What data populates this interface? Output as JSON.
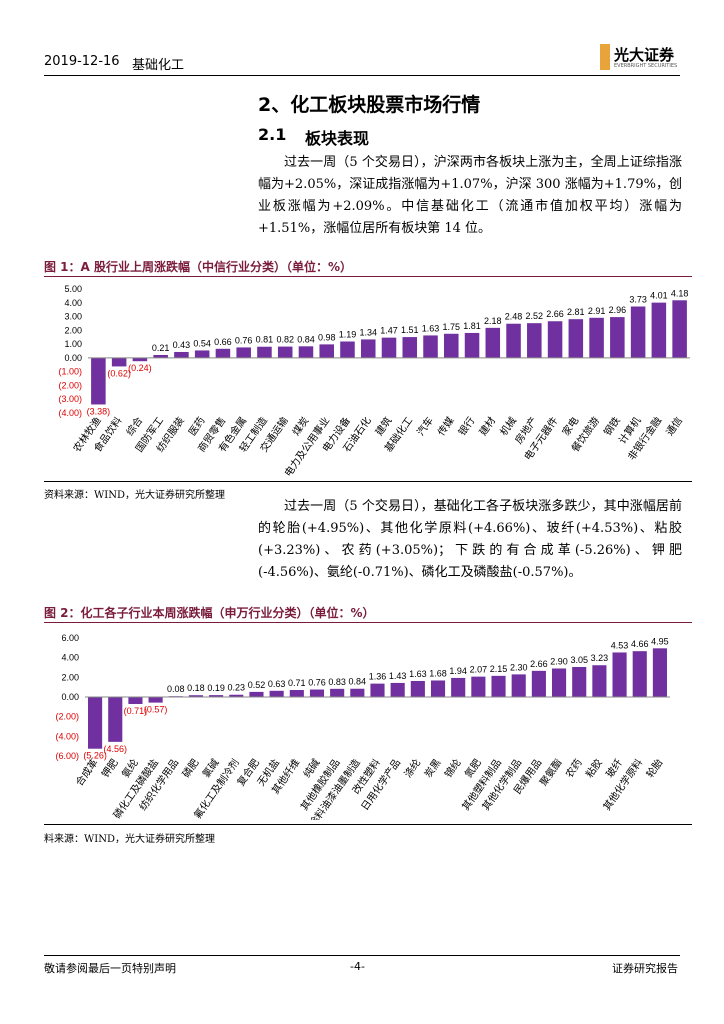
{
  "header": {
    "date": "2019-12-16",
    "section": "基础化工",
    "logo": "光大证券",
    "logo_en": "EVERBRIGHT SECURITIES"
  },
  "heading1": "2、化工板块股票市场行情",
  "heading2": {
    "number": "2.1",
    "title": "板块表现"
  },
  "paragraphs": [
    "过去一周（5 个交易日），沪深两市各板块上涨为主，全周上证综指涨幅为+2.05%，深证成指涨幅为+1.07%，沪深 300 涨幅为+1.79%，创业板涨幅为+2.09%。中信基础化工（流通市值加权平均）涨幅为+1.51%，涨幅位居所有板块第 14 位。",
    "过去一周（5 个交易日），基础化工各子板块涨多跌少，其中涨幅居前的轮胎(+4.95%)、其他化学原料(+4.66%)、玻纤(+4.53%)、粘胶(+3.23%)、农药(+3.05%)；下跌的有合成革(-5.26%)、钾肥(-4.56%)、氨纶(-0.71%)、磷化工及磷酸盐(-0.57%)。"
  ],
  "chart_data": [
    {
      "type": "bar",
      "title": "图 1：A 股行业上周涨跌幅（中信行业分类）（单位：%）",
      "source": "资料来源：WIND，光大证券研究所整理",
      "categories": [
        "农林牧渔",
        "食品饮料",
        "综合",
        "国防军工",
        "纺织服装",
        "医药",
        "商贸零售",
        "有色金属",
        "轻工制造",
        "交通运输",
        "煤炭",
        "电力及公用事业",
        "电力设备",
        "石油石化",
        "建筑",
        "基础化工",
        "汽车",
        "传媒",
        "银行",
        "建材",
        "机械",
        "房地产",
        "电子元器件",
        "家电",
        "餐饮旅游",
        "钢铁",
        "计算机",
        "非银行金融",
        "通信"
      ],
      "values": [
        -3.38,
        -0.62,
        -0.24,
        0.21,
        0.43,
        0.54,
        0.66,
        0.76,
        0.81,
        0.82,
        0.84,
        0.98,
        1.19,
        1.34,
        1.47,
        1.51,
        1.63,
        1.75,
        1.81,
        2.18,
        2.48,
        2.52,
        2.66,
        2.81,
        2.91,
        2.96,
        3.73,
        4.01,
        4.18
      ],
      "value_labels": [
        "(3.38)",
        "(0.62)",
        "(0.24)",
        "0.21",
        "0.43",
        "0.54",
        "0.66",
        "0.76",
        "0.81",
        "0.82",
        "0.84",
        "0.98",
        "1.19",
        "1.34",
        "1.47",
        "1.51",
        "1.63",
        "1.75",
        "1.81",
        "2.18",
        "2.48",
        "2.52",
        "2.66",
        "2.81",
        "2.91",
        "2.96",
        "3.73",
        "4.01",
        "4.18"
      ],
      "color": "#7030a0",
      "negative_label_color": "#e00000",
      "ylim": [
        -4,
        5
      ],
      "yticks": [
        {
          "value": -4,
          "label": "(4.00)"
        },
        {
          "value": -3,
          "label": "(3.00)"
        },
        {
          "value": -2,
          "label": "(2.00)"
        },
        {
          "value": -1,
          "label": "(1.00)"
        },
        {
          "value": 0,
          "label": "0.00"
        },
        {
          "value": 1,
          "label": "1.00"
        },
        {
          "value": 2,
          "label": "2.00"
        },
        {
          "value": 3,
          "label": "3.00"
        },
        {
          "value": 4,
          "label": "4.00"
        },
        {
          "value": 5,
          "label": "5.00"
        }
      ]
    },
    {
      "type": "bar",
      "title": "图 2：化工各子行业本周涨跌幅（申万行业分类）（单位：%）",
      "source": "料来源：WIND，光大证券研究所整理",
      "categories": [
        "合成革",
        "钾肥",
        "氨纶",
        "磷化工及磷酸盐",
        "纺织化学用品",
        "磷肥",
        "氯碱",
        "氟化工及制冷剂",
        "复合肥",
        "无机盐",
        "其他纤维",
        "纯碱",
        "其他橡胶制品",
        "涂料油漆油墨制造",
        "改性塑料",
        "日用化学产品",
        "涤纶",
        "炭黑",
        "锦纶",
        "氮肥",
        "其他塑料制品",
        "其他化学制品",
        "民爆用品",
        "聚氨酯",
        "农药",
        "粘胶",
        "玻纤",
        "其他化学原料",
        "轮胎"
      ],
      "values": [
        -5.26,
        -4.56,
        -0.71,
        -0.57,
        0.08,
        0.18,
        0.19,
        0.23,
        0.52,
        0.63,
        0.71,
        0.76,
        0.83,
        0.84,
        1.36,
        1.43,
        1.63,
        1.68,
        1.94,
        2.07,
        2.15,
        2.3,
        2.66,
        2.9,
        3.05,
        3.23,
        4.53,
        4.66,
        4.95
      ],
      "value_labels": [
        "(5.26)",
        "(4.56)",
        "(0.71)",
        "(0.57)",
        "0.08",
        "0.18",
        "0.19",
        "0.23",
        "0.52",
        "0.63",
        "0.71",
        "0.76",
        "0.83",
        "0.84",
        "1.36",
        "1.43",
        "1.63",
        "1.68",
        "1.94",
        "2.07",
        "2.15",
        "2.30",
        "2.66",
        "2.90",
        "3.05",
        "3.23",
        "4.53",
        "4.66",
        "4.95"
      ],
      "color": "#7030a0",
      "negative_label_color": "#e00000",
      "ylim": [
        -6,
        6
      ],
      "yticks": [
        {
          "value": -6,
          "label": "(6.00)"
        },
        {
          "value": -4,
          "label": "(4.00)"
        },
        {
          "value": -2,
          "label": "(2.00)"
        },
        {
          "value": 0,
          "label": "0.00"
        },
        {
          "value": 2,
          "label": "2.00"
        },
        {
          "value": 4,
          "label": "4.00"
        },
        {
          "value": 6,
          "label": "6.00"
        }
      ]
    }
  ],
  "footer": {
    "left": "敬请参阅最后一页特别声明",
    "page": "-4-",
    "right": "证券研究报告"
  }
}
